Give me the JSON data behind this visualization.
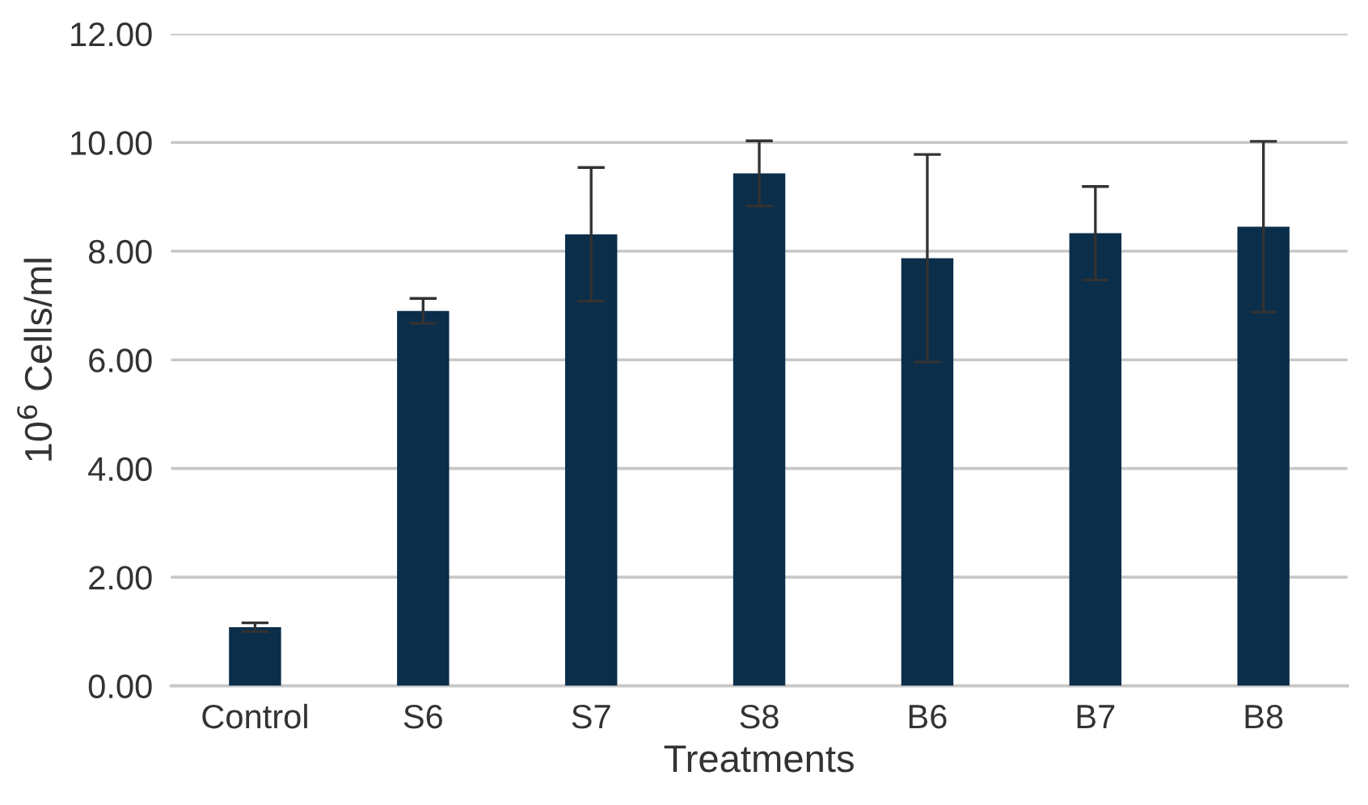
{
  "chart_data": {
    "type": "bar",
    "xlabel": "Treatments",
    "ylabel": "10$^{6}$ Cells/ml",
    "categories": [
      "Control",
      "S6",
      "S7",
      "S8",
      "B6",
      "B7",
      "B8"
    ],
    "values": [
      1.08,
      6.9,
      8.31,
      9.43,
      7.87,
      8.33,
      8.45
    ],
    "errors": [
      0.08,
      0.23,
      1.23,
      0.6,
      1.91,
      0.86,
      1.57
    ],
    "color": "#0b2e4a",
    "ylim": [
      0,
      12
    ],
    "yticks": [
      {
        "value": 0,
        "label": "0.00"
      },
      {
        "value": 2,
        "label": "2.00"
      },
      {
        "value": 4,
        "label": "4.00"
      },
      {
        "value": 6,
        "label": "6.00"
      },
      {
        "value": 8,
        "label": "8.00"
      },
      {
        "value": 10,
        "label": "10.00"
      },
      {
        "value": 12,
        "label": "12.00"
      }
    ],
    "grid": "y",
    "legend": false
  }
}
